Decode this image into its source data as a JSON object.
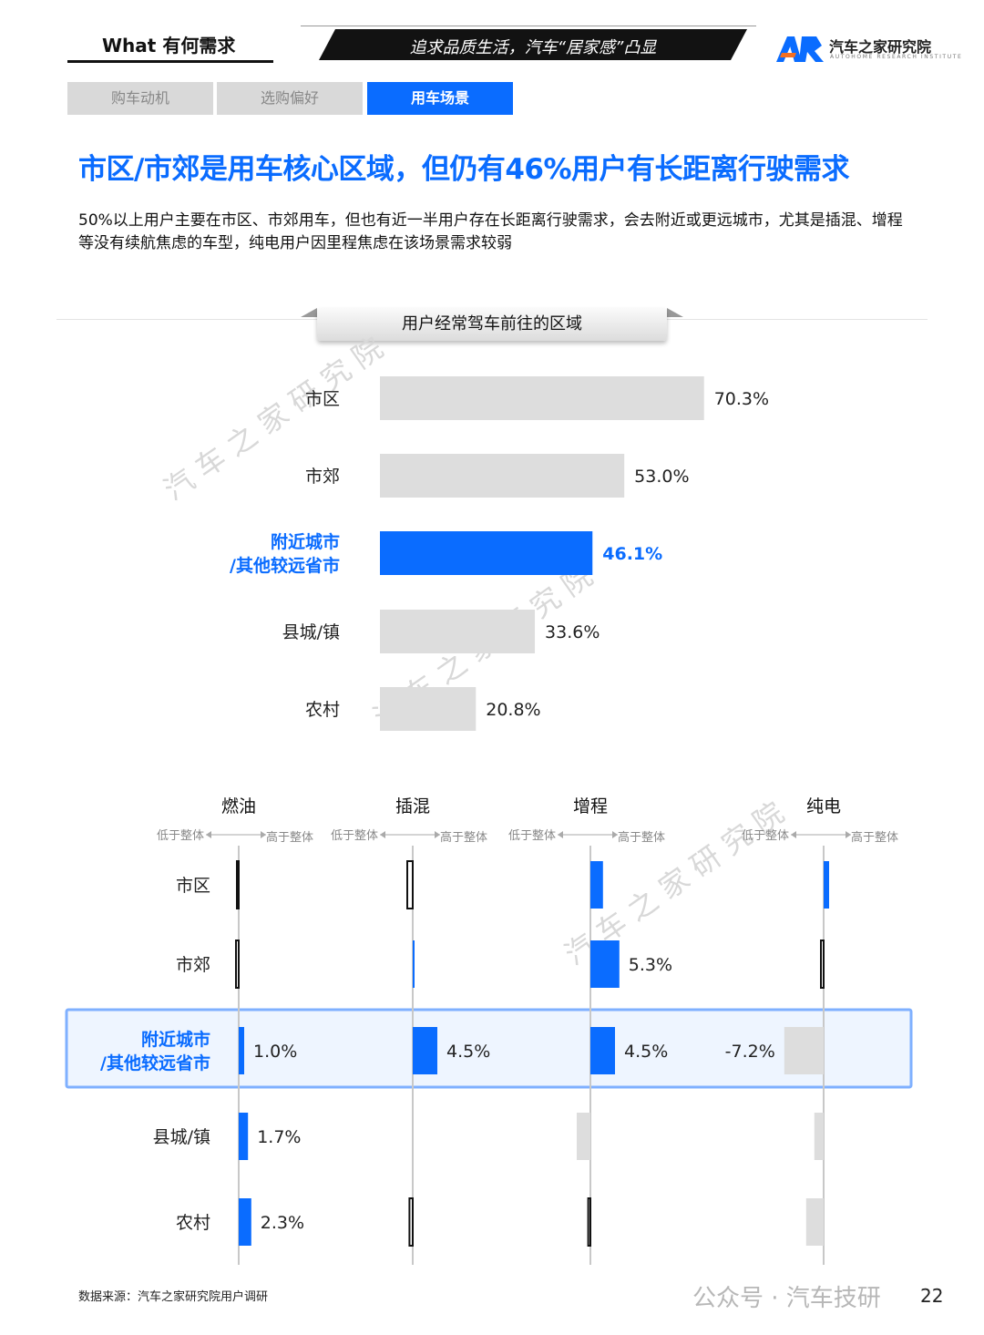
{
  "header": {
    "section_label": "What 有何需求",
    "slogan": "追求品质生活，汽车“居家感”凸显",
    "logo_name": "汽车之家研究院",
    "logo_en": "AUTOHOME RESEARCH INSTITUTE"
  },
  "tabs": [
    {
      "label": "购车动机",
      "active": false
    },
    {
      "label": "选购偏好",
      "active": false
    },
    {
      "label": "用车场景",
      "active": true
    }
  ],
  "title": "市区/市郊是用车核心区域，但仍有46%用户有长距离行驶需求",
  "description": "50%以上用户主要在市区、市郊用车，但也有近一半用户存在长距离行驶需求，会去附近或更远城市，尤其是插混、增程等没有续航焦虑的车型，纯电用户因里程焦虑在该场景需求较弱",
  "watermark": "汽车之家研究院",
  "colors": {
    "accent": "#0a6cff",
    "bar_gray": "#dddddd",
    "text": "#111111"
  },
  "chart_data": [
    {
      "type": "bar",
      "orientation": "horizontal",
      "title": "用户经常驾车前往的区域",
      "categories": [
        "市区",
        "市郊",
        "附近城市/其他较远省市",
        "县城/镇",
        "农村"
      ],
      "category_lines": [
        [
          "市区"
        ],
        [
          "市郊"
        ],
        [
          "附近城市",
          "/其他较远省市"
        ],
        [
          "县城/镇"
        ],
        [
          "农村"
        ]
      ],
      "values": [
        70.3,
        53.0,
        46.1,
        33.6,
        20.8
      ],
      "value_labels": [
        "70.3%",
        "53.0%",
        "46.1%",
        "33.6%",
        "20.8%"
      ],
      "highlight_index": 2,
      "xlim": [
        0,
        100
      ],
      "unit": "%"
    },
    {
      "type": "bar",
      "orientation": "horizontal-diverging",
      "categories": [
        "市区",
        "市郊",
        "附近城市/其他较远省市",
        "县城/镇",
        "农村"
      ],
      "category_lines": [
        [
          "市区"
        ],
        [
          "市郊"
        ],
        [
          "附近城市",
          "/其他较远省市"
        ],
        [
          "县城/镇"
        ],
        [
          "农村"
        ]
      ],
      "axis_left_label": "低于整体",
      "axis_right_label": "高于整体",
      "highlight_index": 2,
      "unit": "%",
      "series": [
        {
          "name": "燃油",
          "values": [
            -0.3,
            -0.5,
            1.0,
            1.7,
            2.3
          ],
          "labels": [
            "",
            "",
            "1.0%",
            "1.7%",
            "2.3%"
          ]
        },
        {
          "name": "插混",
          "values": [
            -1.0,
            0.3,
            4.5,
            0.0,
            -0.6
          ],
          "labels": [
            "",
            "",
            "4.5%",
            "",
            ""
          ]
        },
        {
          "name": "增程",
          "values": [
            2.3,
            5.3,
            4.5,
            -2.5,
            -0.4
          ],
          "labels": [
            "",
            "5.3%",
            "4.5%",
            "",
            ""
          ]
        },
        {
          "name": "纯电",
          "values": [
            1.0,
            -0.5,
            -7.2,
            -1.7,
            -3.2
          ],
          "labels": [
            "",
            "",
            "-7.2%",
            "",
            ""
          ]
        }
      ]
    }
  ],
  "footer": {
    "source": "数据来源：汽车之家研究院用户调研",
    "page": "22",
    "wechat_account": "公众号 · 汽车技研"
  }
}
